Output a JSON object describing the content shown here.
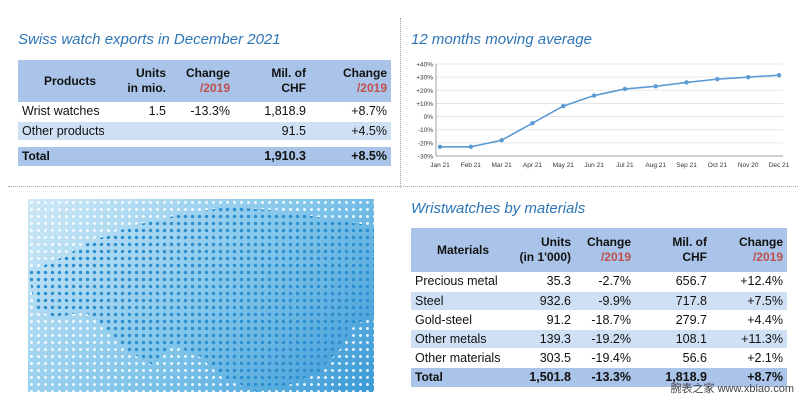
{
  "exports": {
    "title": "Swiss watch exports in December 2021",
    "headers": {
      "products": "Products",
      "units_l1": "Units",
      "units_l2": "in mio.",
      "change_l1": "Change",
      "change_l2": "/2019",
      "mil_l1": "Mil. of",
      "mil_l2": "CHF",
      "change2_l1": "Change",
      "change2_l2": "/2019"
    },
    "rows": [
      {
        "label": "Wrist watches",
        "units": "1.5",
        "change": "-13.3%",
        "mil": "1,818.9",
        "change2": "+8.7%"
      },
      {
        "label": "Other products",
        "units": "",
        "change": "",
        "mil": "91.5",
        "change2": "+4.5%"
      }
    ],
    "total": {
      "label": "Total",
      "units": "",
      "change": "",
      "mil": "1,910.3",
      "change2": "+8.5%"
    }
  },
  "materials": {
    "title": "Wristwatches by materials",
    "headers": {
      "materials": "Materials",
      "units_l1": "Units",
      "units_l2": "(in 1'000)",
      "change_l1": "Change",
      "change_l2": "/2019",
      "mil_l1": "Mil. of",
      "mil_l2": "CHF",
      "change2_l1": "Change",
      "change2_l2": "/2019"
    },
    "rows": [
      {
        "label": "Precious metal",
        "units": "35.3",
        "change": "-2.7%",
        "mil": "656.7",
        "change2": "+12.4%"
      },
      {
        "label": "Steel",
        "units": "932.6",
        "change": "-9.9%",
        "mil": "717.8",
        "change2": "+7.5%"
      },
      {
        "label": "Gold-steel",
        "units": "91.2",
        "change": "-18.7%",
        "mil": "279.7",
        "change2": "+4.4%"
      },
      {
        "label": "Other metals",
        "units": "139.3",
        "change": "-19.2%",
        "mil": "108.1",
        "change2": "+11.3%"
      },
      {
        "label": "Other materials",
        "units": "303.5",
        "change": "-19.4%",
        "mil": "56.6",
        "change2": "+2.1%"
      }
    ],
    "total": {
      "label": "Total",
      "units": "1,501.8",
      "change": "-13.3%",
      "mil": "1,818.9",
      "change2": "+8.7%"
    }
  },
  "chart_data": {
    "type": "line",
    "title": "12 months moving average",
    "categories": [
      "Jan 21",
      "Feb 21",
      "Mar 21",
      "Apr 21",
      "May 21",
      "Jun 21",
      "Jul 21",
      "Aug 21",
      "Sep 21",
      "Oct 21",
      "Nov 20",
      "Dec 21"
    ],
    "y_ticks": [
      "+40%",
      "+30%",
      "+20%",
      "+10%",
      "0%",
      "-10%",
      "-20%",
      "-30%"
    ],
    "series": [
      {
        "values": [
          -23,
          -23,
          -18,
          -5,
          8,
          16,
          21,
          23,
          26,
          28.5,
          30,
          31.5
        ]
      }
    ],
    "ylim": [
      -30,
      40
    ],
    "grid": true,
    "line_color": "#5b9bd5"
  },
  "watermark": "腕表之家 www.xbiao.com"
}
